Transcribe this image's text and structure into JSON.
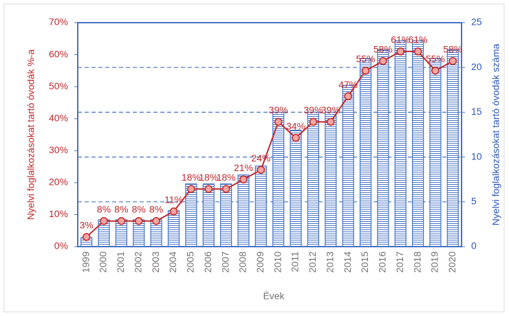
{
  "chart_data": {
    "type": "bar_line",
    "x_label": "Évek",
    "y_label": "Nyelvi foglalkozásokat tartó óvodák %-a",
    "y2_label": "Nyelvi foglalkozásokat tartó óvodák száma",
    "categories": [
      "1999",
      "2000",
      "2001",
      "2002",
      "2003",
      "2004",
      "2005",
      "2006",
      "2007",
      "2008",
      "2009",
      "2010",
      "2011",
      "2012",
      "2013",
      "2014",
      "2015",
      "2016",
      "2017",
      "2018",
      "2019",
      "2020"
    ],
    "series": [
      {
        "type": "bar",
        "axis": "y2",
        "color": "#4472c4",
        "values": [
          1,
          3,
          3,
          3,
          3,
          4,
          7,
          7,
          7,
          8,
          9,
          15,
          13,
          15,
          15,
          18,
          21,
          22,
          23,
          23,
          21,
          22
        ]
      },
      {
        "type": "line",
        "axis": "y",
        "color": "#c0282d",
        "marker_fill": "#f4a6a0",
        "values": [
          3,
          8,
          8,
          8,
          8,
          11,
          18,
          18,
          18,
          21,
          24,
          39,
          34,
          39,
          39,
          47,
          55,
          58,
          61,
          61,
          55,
          58
        ],
        "value_labels": [
          "3%",
          "8%",
          "8%",
          "8%",
          "8%",
          "11%",
          "18%",
          "18%",
          "18%",
          "21%",
          "24%",
          "39%",
          "34%",
          "39%",
          "39%",
          "47%",
          "55%",
          "58%",
          "61%",
          "61%",
          "55%",
          "58%"
        ]
      }
    ],
    "ylim": [
      0,
      70
    ],
    "yticks": [
      {
        "value": 0,
        "label": "0%"
      },
      {
        "value": 10,
        "label": "10%"
      },
      {
        "value": 20,
        "label": "20%"
      },
      {
        "value": 30,
        "label": "30%"
      },
      {
        "value": 40,
        "label": "40%"
      },
      {
        "value": 50,
        "label": "50%"
      },
      {
        "value": 60,
        "label": "60%"
      },
      {
        "value": 70,
        "label": "70%"
      }
    ],
    "y2lim": [
      0,
      25
    ],
    "y2ticks": [
      0,
      5,
      10,
      15,
      20,
      25
    ],
    "grid": true
  }
}
